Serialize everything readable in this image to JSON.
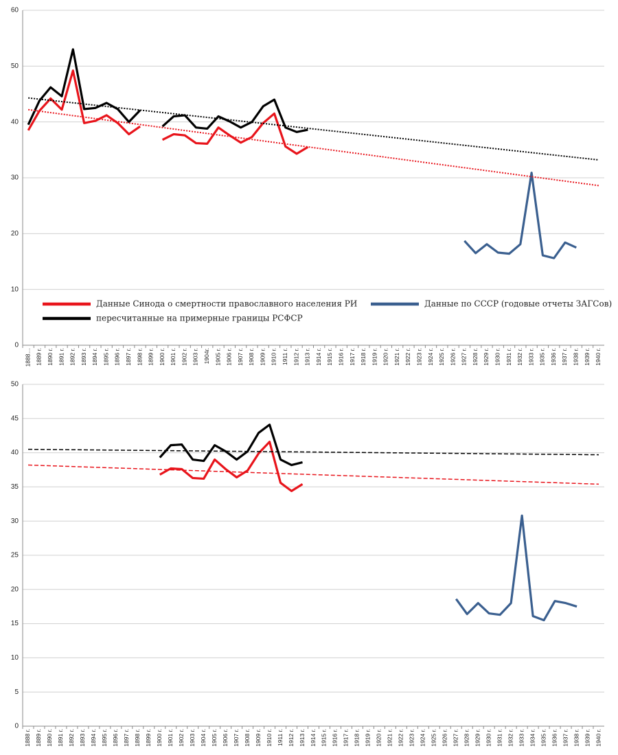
{
  "chart_data": [
    {
      "type": "line",
      "categories": [
        "1888…",
        "1889 г.",
        "1890 г.",
        "1891 г.",
        "1892 г.",
        "1893 г.",
        "1894 г.",
        "1895 г.",
        "1896 г.",
        "1897 г.",
        "1898 г.",
        "1899 г.",
        "1900 г.",
        "1901 г.",
        "1902 г.",
        "1903 г.",
        "1904г.",
        "1905 г.",
        "1906 г.",
        "1907 г.",
        "1908 г.",
        "1909 г.",
        "1910 г.",
        "1911 г.",
        "1912 г.",
        "1913 г.",
        "1914 г.",
        "1915 г.",
        "1916 г.",
        "1917 г.",
        "1918 г.",
        "1919 г.",
        "1920 г.",
        "1921 г.",
        "1922 г.",
        "1923 г.",
        "1924 г.",
        "1925 г.",
        "1926 г.",
        "1927 г.",
        "1928 г.",
        "1929 г.",
        "1930 г.",
        "1931 г.",
        "1932 г.",
        "1933 г.",
        "1935 г.",
        "1936 г.",
        "1937 г.",
        "1938 г.",
        "1939 г.",
        "1940 г."
      ],
      "series": [
        {
          "name": "Данные Синода о смертности православного населения РИ",
          "color": "#e8141b",
          "values": [
            38.5,
            42,
            44.2,
            42.2,
            49.2,
            39.8,
            40.2,
            41.2,
            39.8,
            37.8,
            39.2,
            null,
            36.8,
            37.8,
            37.6,
            36.2,
            36.1,
            39,
            37.6,
            36.3,
            37.3,
            39.8,
            41.5,
            35.6,
            34.3,
            35.5,
            null,
            null,
            null,
            null,
            null,
            null,
            null,
            null,
            null,
            null,
            null,
            null,
            null,
            null,
            null,
            null,
            null,
            null,
            null,
            null,
            null,
            null,
            null,
            null,
            null,
            null
          ]
        },
        {
          "name": "пересчитанные на примерные границы РСФСР",
          "color": "#000000",
          "values": [
            39.5,
            43.8,
            46.2,
            44.6,
            53,
            42.3,
            42.5,
            43.4,
            42.3,
            40,
            42.1,
            null,
            39.2,
            41,
            41.2,
            39,
            38.8,
            41,
            40.1,
            39,
            40,
            42.8,
            44,
            39,
            38.2,
            38.6,
            null,
            null,
            null,
            null,
            null,
            null,
            null,
            null,
            null,
            null,
            null,
            null,
            null,
            null,
            null,
            null,
            null,
            null,
            null,
            null,
            null,
            null,
            null,
            null,
            null,
            null
          ]
        },
        {
          "name": "Данные по СССР (годовые отчеты ЗАГСов)",
          "color": "#3a5f8f",
          "values": [
            null,
            null,
            null,
            null,
            null,
            null,
            null,
            null,
            null,
            null,
            null,
            null,
            null,
            null,
            null,
            null,
            null,
            null,
            null,
            null,
            null,
            null,
            null,
            null,
            null,
            null,
            null,
            null,
            null,
            null,
            null,
            null,
            null,
            null,
            null,
            null,
            null,
            null,
            null,
            18.7,
            16.5,
            18.1,
            16.6,
            16.4,
            18.1,
            30.9,
            16.1,
            15.6,
            18.4,
            17.5,
            null,
            null
          ]
        }
      ],
      "trendlines": [
        {
          "color": "#000000",
          "style": "dotted",
          "values": [
            44.3,
            33.2
          ]
        },
        {
          "color": "#e8141b",
          "style": "dotted",
          "values": [
            42.2,
            28.6
          ]
        }
      ],
      "ylim": [
        0,
        60
      ],
      "yticks": [
        0,
        10,
        20,
        30,
        40,
        50,
        60
      ],
      "grid": true
    },
    {
      "type": "line",
      "categories": [
        "1888 г.",
        "1889 г.",
        "1890 г.",
        "1891 г.",
        "1892 г.",
        "1893 г.",
        "1894 г.",
        "1895 г.",
        "1896 г.",
        "1897 г.",
        "1898 г.",
        "1899 г.",
        "1900 г.",
        "1901 г.",
        "1902 г.",
        "1903 г.",
        "1904 г.",
        "1905 г.",
        "1906 г.",
        "1907 г.",
        "1908 г.",
        "1909 г.",
        "1910 г.",
        "1911 г.",
        "1912 г.",
        "1913 г.",
        "1914 г.",
        "1915 г.",
        "1916 г.",
        "1917 г.",
        "1918 г.",
        "1919 г.",
        "1920 г.",
        "1921 г.",
        "1922 г.",
        "1923 г.",
        "1924 г.",
        "1925 г.",
        "1926 г.",
        "1927 г.",
        "1928 г.",
        "1929 г.",
        "1930 г.",
        "1931 г.",
        "1932 г.",
        "1933 г.",
        "1934 г.",
        "1935 г.",
        "1936 г.",
        "1937 г.",
        "1938 г.",
        "1939 г.",
        "1940 г."
      ],
      "series": [
        {
          "color": "#e8141b",
          "values": [
            null,
            null,
            null,
            null,
            null,
            null,
            null,
            null,
            null,
            null,
            null,
            null,
            36.8,
            37.7,
            37.6,
            36.3,
            36.2,
            39,
            37.6,
            36.4,
            37.4,
            39.9,
            41.6,
            35.6,
            34.4,
            35.4,
            null,
            null,
            null,
            null,
            null,
            null,
            null,
            null,
            null,
            null,
            null,
            null,
            null,
            null,
            null,
            null,
            null,
            null,
            null,
            null,
            null,
            null,
            null,
            null,
            null,
            null,
            null
          ]
        },
        {
          "color": "#000000",
          "values": [
            null,
            null,
            null,
            null,
            null,
            null,
            null,
            null,
            null,
            null,
            null,
            null,
            39.3,
            41.1,
            41.2,
            39,
            38.8,
            41.1,
            40.2,
            39,
            40.2,
            42.9,
            44.1,
            39,
            38.2,
            38.6,
            null,
            null,
            null,
            null,
            null,
            null,
            null,
            null,
            null,
            null,
            null,
            null,
            null,
            null,
            null,
            null,
            null,
            null,
            null,
            null,
            null,
            null,
            null,
            null,
            null,
            null,
            null
          ]
        },
        {
          "color": "#3a5f8f",
          "values": [
            null,
            null,
            null,
            null,
            null,
            null,
            null,
            null,
            null,
            null,
            null,
            null,
            null,
            null,
            null,
            null,
            null,
            null,
            null,
            null,
            null,
            null,
            null,
            null,
            null,
            null,
            null,
            null,
            null,
            null,
            null,
            null,
            null,
            null,
            null,
            null,
            null,
            null,
            null,
            18.6,
            16.4,
            18,
            16.5,
            16.3,
            18,
            30.8,
            16.1,
            15.5,
            18.3,
            18,
            17.5,
            null,
            null
          ]
        }
      ],
      "trendlines": [
        {
          "color": "#000000",
          "style": "dashed",
          "values": [
            40.5,
            39.7
          ]
        },
        {
          "color": "#e8141b",
          "style": "dashed",
          "values": [
            38.2,
            35.4
          ]
        }
      ],
      "ylim": [
        0,
        50
      ],
      "yticks": [
        0,
        5,
        10,
        15,
        20,
        25,
        30,
        35,
        40,
        45,
        50
      ],
      "grid": true
    }
  ]
}
